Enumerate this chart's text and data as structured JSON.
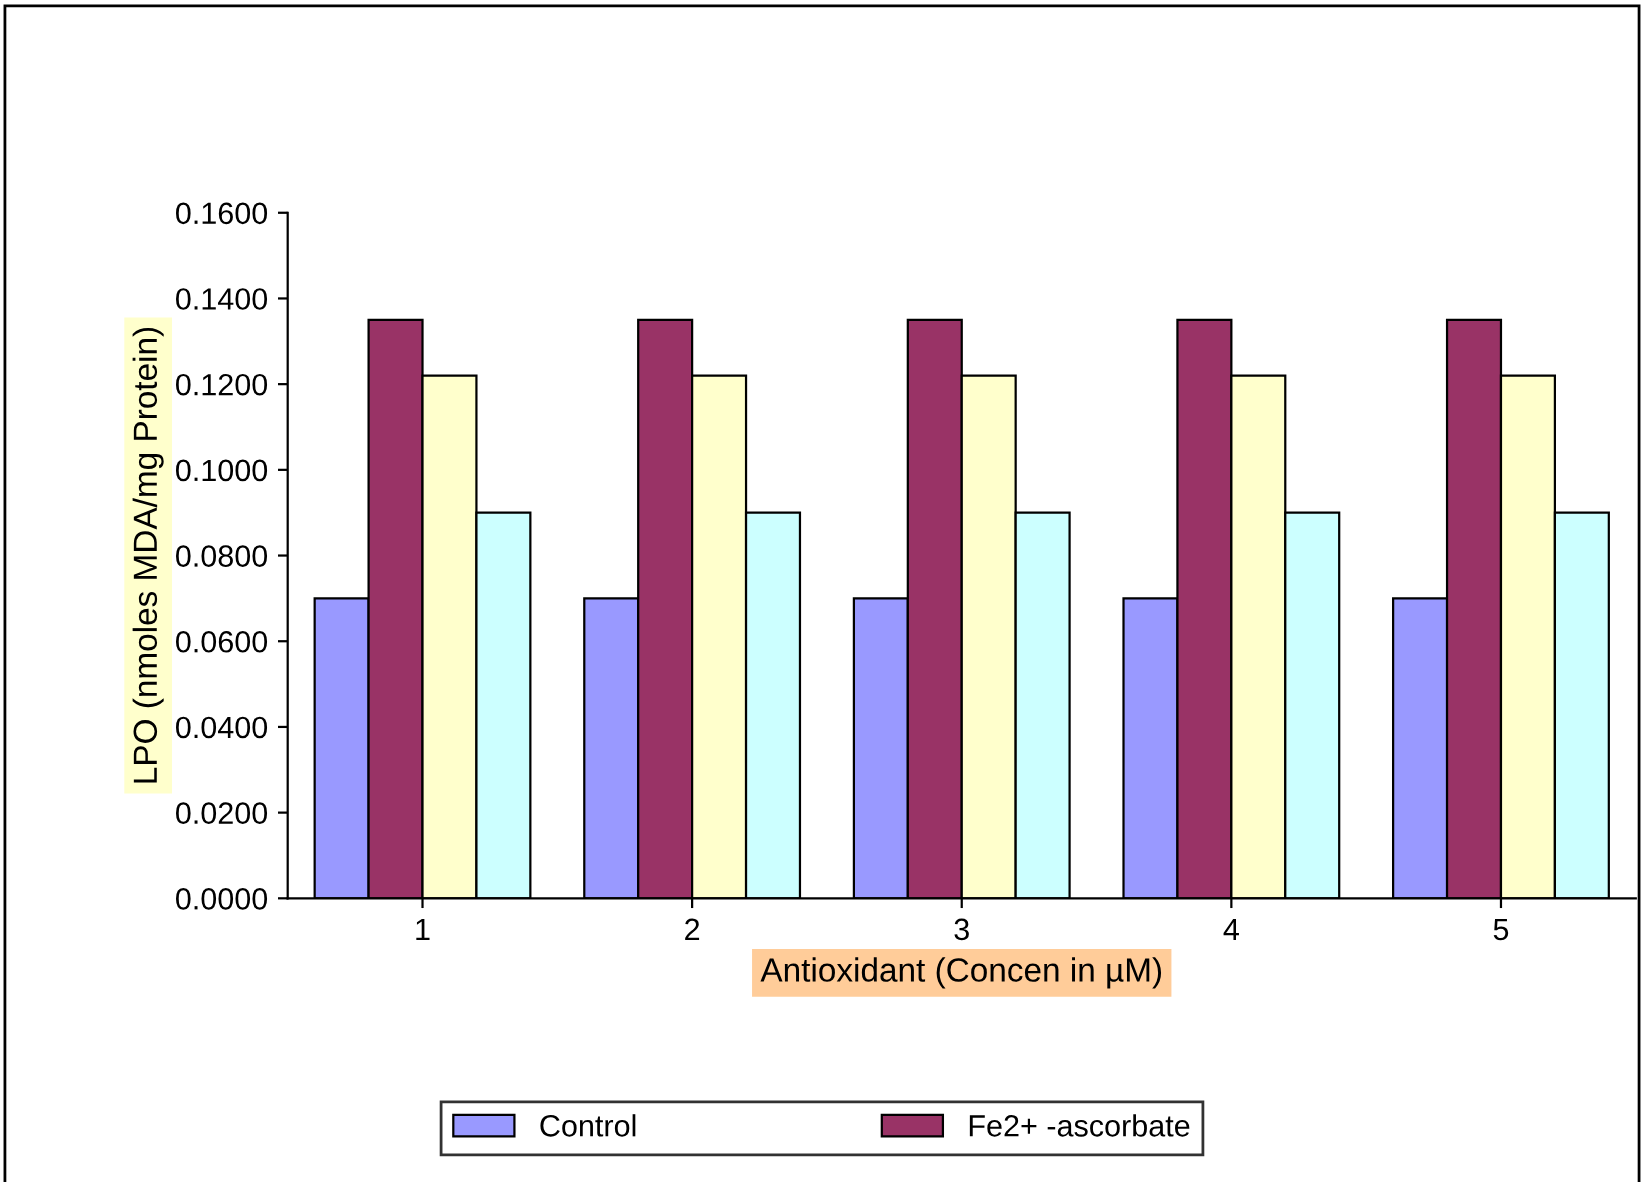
{
  "chart_data": {
    "type": "bar",
    "categories": [
      "1",
      "2",
      "3",
      "4",
      "5"
    ],
    "series": [
      {
        "name": "Control",
        "color": "#9999ff",
        "values": [
          0.07,
          0.07,
          0.07,
          0.07,
          0.07
        ]
      },
      {
        "name": "Fe2+ -ascorbate",
        "color": "#993366",
        "values": [
          0.135,
          0.135,
          0.135,
          0.135,
          0.135
        ]
      },
      {
        "color": "#ffffcc",
        "values": [
          0.122,
          0.122,
          0.122,
          0.122,
          0.122
        ]
      },
      {
        "color": "#ccffff",
        "values": [
          0.09,
          0.09,
          0.09,
          0.09,
          0.09
        ]
      }
    ],
    "xlabel": "Antioxidant (Concen in µM)",
    "ylabel": "LPO (nmoles MDA/mg Protein)",
    "ylim": [
      0,
      0.16
    ],
    "yticks": [
      {
        "value": 0,
        "label": "0.0000"
      },
      {
        "value": 0.02,
        "label": "0.0200"
      },
      {
        "value": 0.04,
        "label": "0.0400"
      },
      {
        "value": 0.06,
        "label": "0.0600"
      },
      {
        "value": 0.08,
        "label": "0.0800"
      },
      {
        "value": 0.1,
        "label": "0.1000"
      },
      {
        "value": 0.12,
        "label": "0.1200"
      },
      {
        "value": 0.14,
        "label": "0.1400"
      },
      {
        "value": 0.16,
        "label": "0.1600"
      }
    ],
    "grid": false,
    "legend": "bottom"
  }
}
